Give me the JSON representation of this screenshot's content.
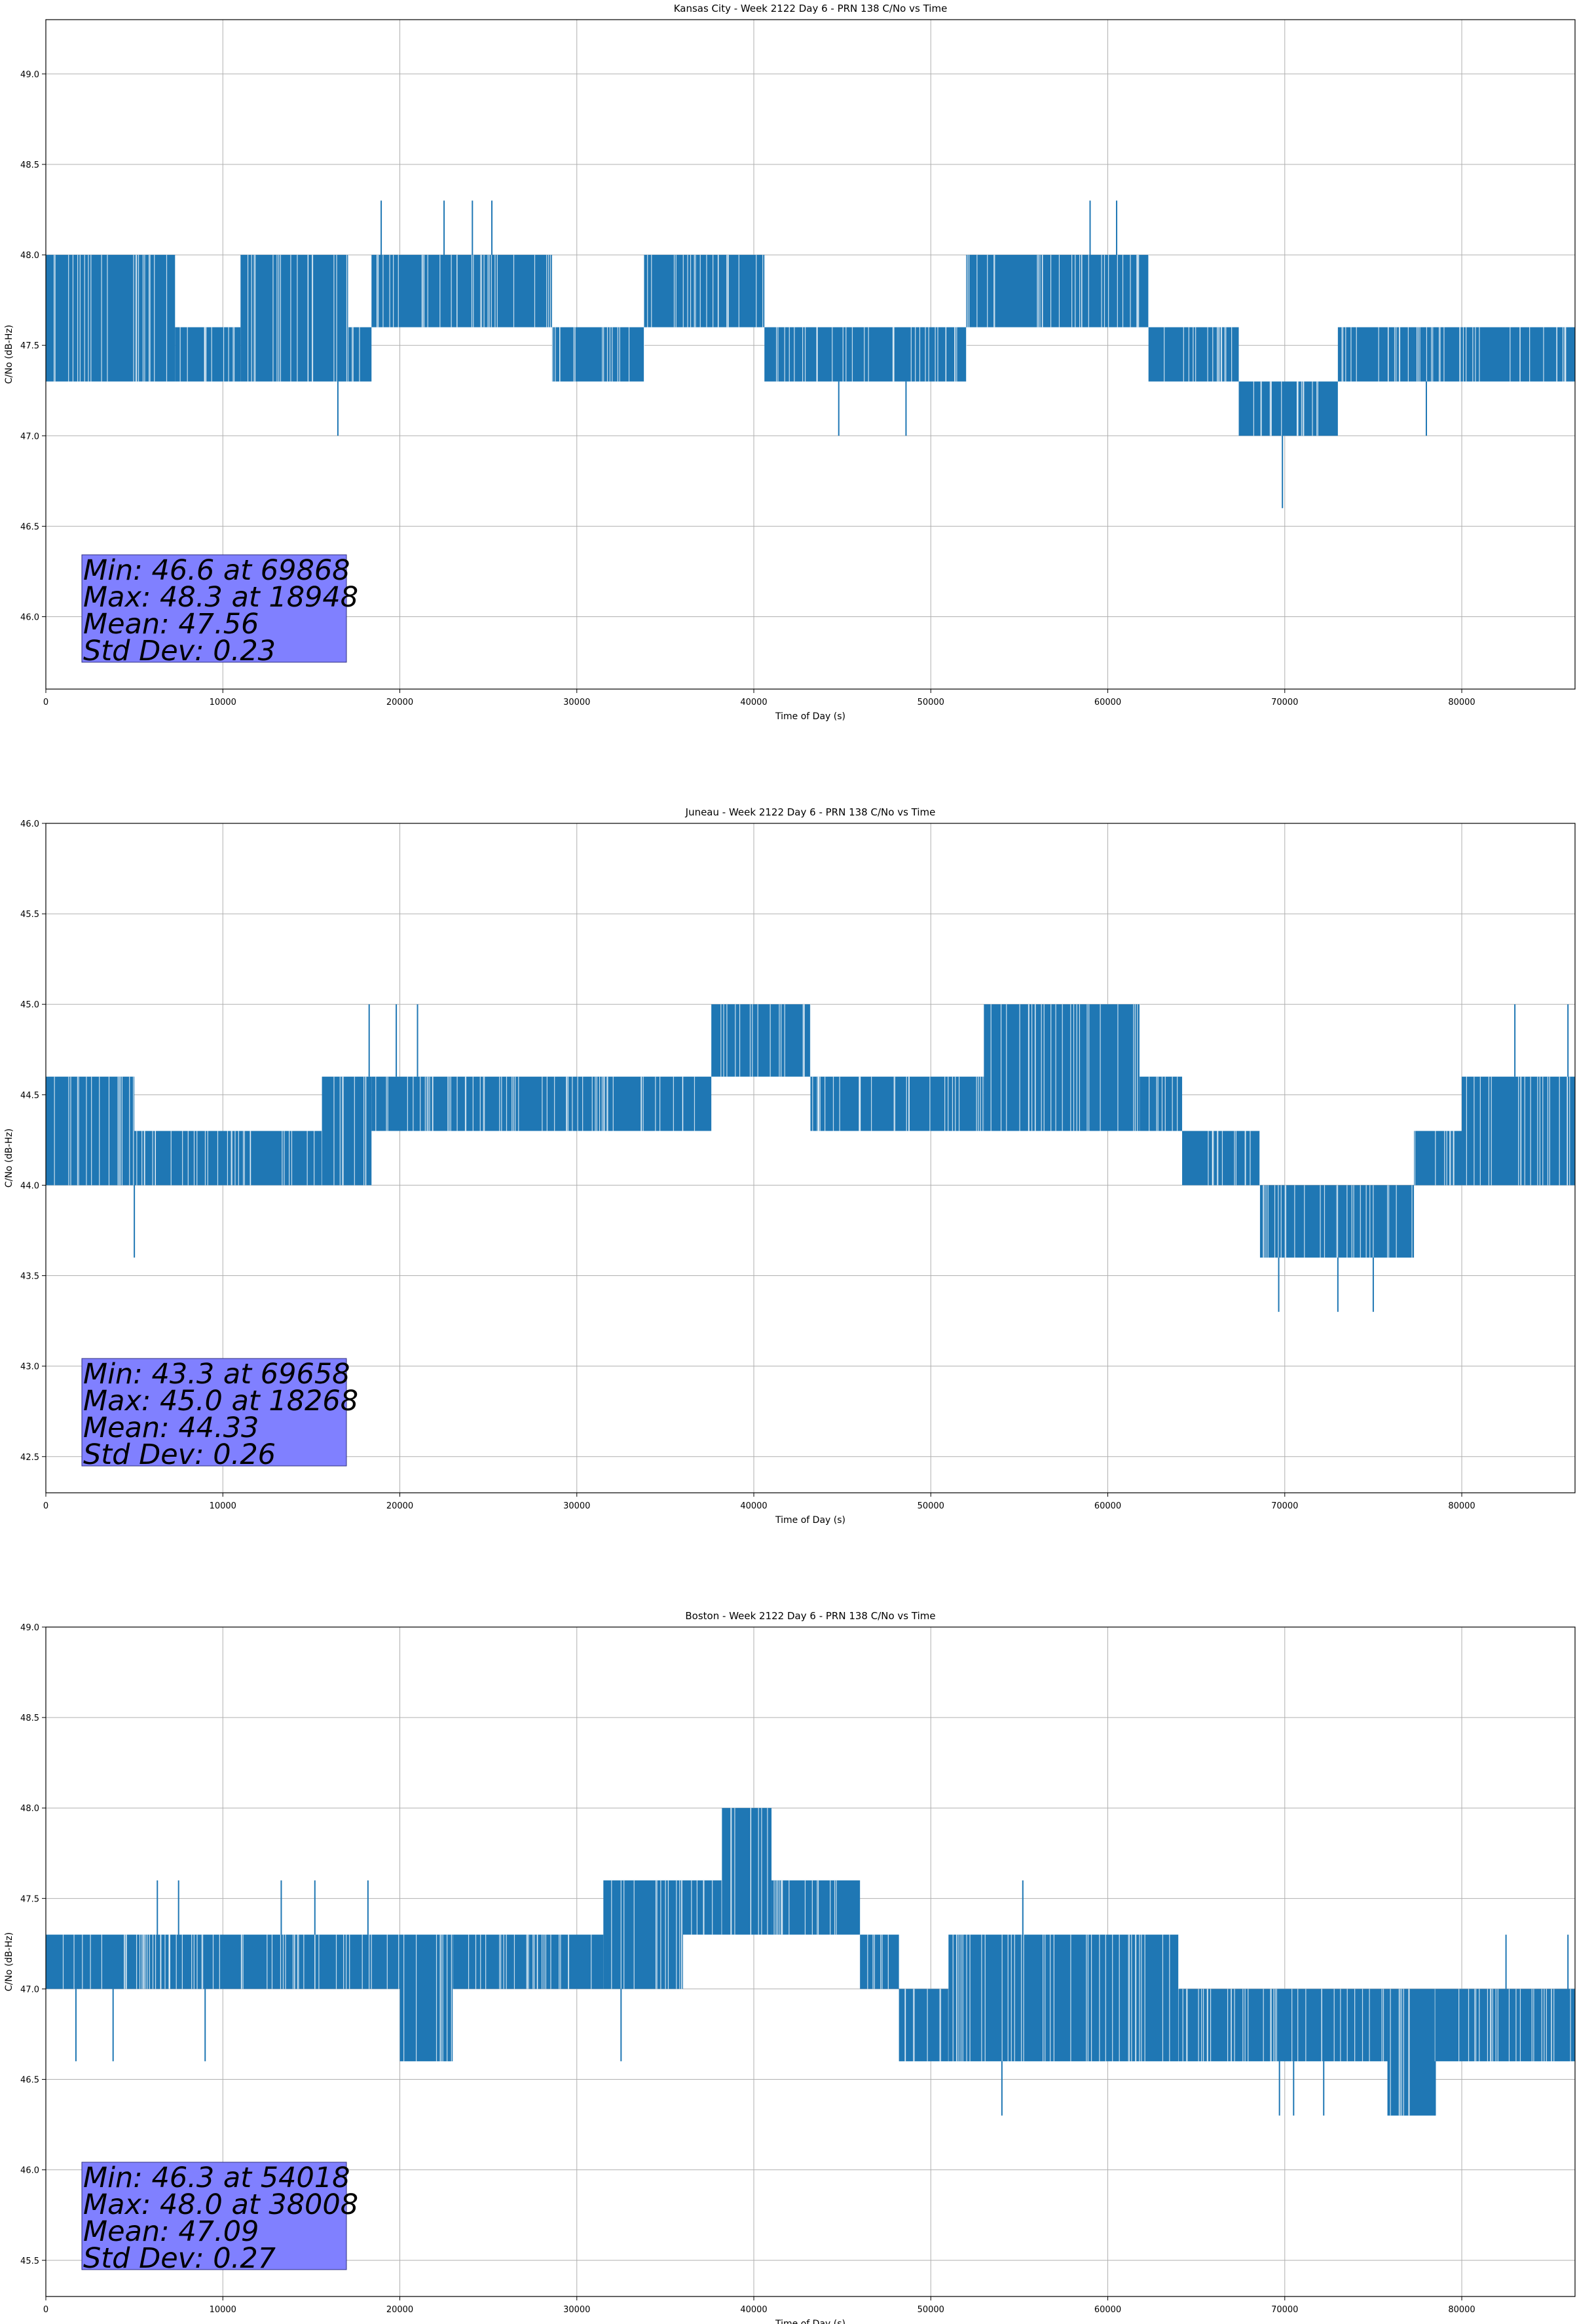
{
  "figure": {
    "background": "#ffffff",
    "series_color": "#1f77b4",
    "stats_box_color": "#8080ff"
  },
  "chart_data": [
    {
      "type": "line",
      "title": "Kansas City - Week 2122 Day 6 - PRN 138 C/No vs Time",
      "xlabel": "Time of Day (s)",
      "ylabel": "C/No (dB-Hz)",
      "xlim": [
        0,
        86400
      ],
      "ylim": [
        45.6,
        49.3
      ],
      "xticks": [
        0,
        10000,
        20000,
        30000,
        40000,
        50000,
        60000,
        70000,
        80000
      ],
      "xtick_labels": [
        "0",
        "10000",
        "20000",
        "30000",
        "40000",
        "50000",
        "60000",
        "70000",
        "80000"
      ],
      "yticks": [
        46.0,
        46.5,
        47.0,
        47.5,
        48.0,
        48.5,
        49.0
      ],
      "ytick_labels": [
        "46.0",
        "46.5",
        "47.0",
        "47.5",
        "48.0",
        "48.5",
        "49.0"
      ],
      "grid": true,
      "segments": [
        {
          "x": [
            0,
            7300
          ],
          "lo": 47.3,
          "hi": 48.0
        },
        {
          "x": [
            7300,
            11000
          ],
          "lo": 47.3,
          "hi": 47.6
        },
        {
          "x": [
            11000,
            17100
          ],
          "lo": 47.3,
          "hi": 48.0
        },
        {
          "x": [
            17100,
            18400
          ],
          "lo": 47.3,
          "hi": 47.6
        },
        {
          "x": [
            18400,
            28600
          ],
          "lo": 47.6,
          "hi": 48.0
        },
        {
          "x": [
            28600,
            33800
          ],
          "lo": 47.3,
          "hi": 47.6
        },
        {
          "x": [
            33800,
            40600
          ],
          "lo": 47.6,
          "hi": 48.0
        },
        {
          "x": [
            40600,
            52000
          ],
          "lo": 47.3,
          "hi": 47.6
        },
        {
          "x": [
            52000,
            62300
          ],
          "lo": 47.6,
          "hi": 48.0
        },
        {
          "x": [
            62300,
            67400
          ],
          "lo": 47.3,
          "hi": 47.6
        },
        {
          "x": [
            67400,
            73000
          ],
          "lo": 47.0,
          "hi": 47.3
        },
        {
          "x": [
            73000,
            76400
          ],
          "lo": 47.3,
          "hi": 47.6
        },
        {
          "x": [
            76400,
            86400
          ],
          "lo": 47.3,
          "hi": 47.6
        }
      ],
      "spikes": [
        {
          "x": 16500,
          "lo": 47.0,
          "hi": 47.3
        },
        {
          "x": 18948,
          "lo": 48.0,
          "hi": 48.3
        },
        {
          "x": 22500,
          "lo": 48.0,
          "hi": 48.3
        },
        {
          "x": 24100,
          "lo": 48.0,
          "hi": 48.3
        },
        {
          "x": 25200,
          "lo": 48.0,
          "hi": 48.3
        },
        {
          "x": 44800,
          "lo": 47.0,
          "hi": 47.3
        },
        {
          "x": 48600,
          "lo": 47.0,
          "hi": 47.3
        },
        {
          "x": 59000,
          "lo": 48.0,
          "hi": 48.3
        },
        {
          "x": 60500,
          "lo": 48.0,
          "hi": 48.3
        },
        {
          "x": 69868,
          "lo": 46.6,
          "hi": 47.0
        },
        {
          "x": 78000,
          "lo": 47.0,
          "hi": 47.3
        }
      ],
      "stats": [
        "Min: 46.6 at 69868",
        "Max: 48.3 at 18948",
        "Mean: 47.56",
        "Std Dev: 0.23"
      ]
    },
    {
      "type": "line",
      "title": "Juneau - Week 2122 Day 6 - PRN 138 C/No vs Time",
      "xlabel": "Time of Day (s)",
      "ylabel": "C/No (dB-Hz)",
      "xlim": [
        0,
        86400
      ],
      "ylim": [
        42.3,
        46.0
      ],
      "xticks": [
        0,
        10000,
        20000,
        30000,
        40000,
        50000,
        60000,
        70000,
        80000
      ],
      "xtick_labels": [
        "0",
        "10000",
        "20000",
        "30000",
        "40000",
        "50000",
        "60000",
        "70000",
        "80000"
      ],
      "yticks": [
        42.5,
        43.0,
        43.5,
        44.0,
        44.5,
        45.0,
        45.5,
        46.0
      ],
      "ytick_labels": [
        "42.5",
        "43.0",
        "43.5",
        "44.0",
        "44.5",
        "45.0",
        "45.5",
        "46.0"
      ],
      "grid": true,
      "segments": [
        {
          "x": [
            0,
            5000
          ],
          "lo": 44.0,
          "hi": 44.6
        },
        {
          "x": [
            5000,
            15600
          ],
          "lo": 44.0,
          "hi": 44.3
        },
        {
          "x": [
            15600,
            18400
          ],
          "lo": 44.0,
          "hi": 44.6
        },
        {
          "x": [
            18400,
            37600
          ],
          "lo": 44.3,
          "hi": 44.6
        },
        {
          "x": [
            37600,
            43200
          ],
          "lo": 44.6,
          "hi": 45.0
        },
        {
          "x": [
            43200,
            53000
          ],
          "lo": 44.3,
          "hi": 44.6
        },
        {
          "x": [
            53000,
            61800
          ],
          "lo": 44.3,
          "hi": 45.0
        },
        {
          "x": [
            61800,
            64200
          ],
          "lo": 44.3,
          "hi": 44.6
        },
        {
          "x": [
            64200,
            68600
          ],
          "lo": 44.0,
          "hi": 44.3
        },
        {
          "x": [
            68600,
            77300
          ],
          "lo": 43.6,
          "hi": 44.0
        },
        {
          "x": [
            77300,
            80000
          ],
          "lo": 44.0,
          "hi": 44.3
        },
        {
          "x": [
            80000,
            86400
          ],
          "lo": 44.0,
          "hi": 44.6
        }
      ],
      "spikes": [
        {
          "x": 5000,
          "lo": 43.6,
          "hi": 44.0
        },
        {
          "x": 18268,
          "lo": 44.6,
          "hi": 45.0
        },
        {
          "x": 19800,
          "lo": 44.6,
          "hi": 45.0
        },
        {
          "x": 21000,
          "lo": 44.6,
          "hi": 45.0
        },
        {
          "x": 69658,
          "lo": 43.3,
          "hi": 43.6
        },
        {
          "x": 73000,
          "lo": 43.3,
          "hi": 43.6
        },
        {
          "x": 75000,
          "lo": 43.3,
          "hi": 43.6
        },
        {
          "x": 83000,
          "lo": 44.6,
          "hi": 45.0
        },
        {
          "x": 86000,
          "lo": 44.6,
          "hi": 45.0
        }
      ],
      "stats": [
        "Min: 43.3 at 69658",
        "Max: 45.0 at 18268",
        "Mean: 44.33",
        "Std Dev: 0.26"
      ]
    },
    {
      "type": "line",
      "title": "Boston - Week 2122 Day 6 - PRN 138 C/No vs Time",
      "xlabel": "Time of Day (s)",
      "ylabel": "C/No (dB-Hz)",
      "xlim": [
        0,
        86400
      ],
      "ylim": [
        45.3,
        49.0
      ],
      "xticks": [
        0,
        10000,
        20000,
        30000,
        40000,
        50000,
        60000,
        70000,
        80000
      ],
      "xtick_labels": [
        "0",
        "10000",
        "20000",
        "30000",
        "40000",
        "50000",
        "60000",
        "70000",
        "80000"
      ],
      "yticks": [
        45.5,
        46.0,
        46.5,
        47.0,
        47.5,
        48.0,
        48.5,
        49.0
      ],
      "ytick_labels": [
        "45.5",
        "46.0",
        "46.5",
        "47.0",
        "47.5",
        "48.0",
        "48.5",
        "49.0"
      ],
      "grid": true,
      "segments": [
        {
          "x": [
            0,
            20000
          ],
          "lo": 47.0,
          "hi": 47.3
        },
        {
          "x": [
            20000,
            23000
          ],
          "lo": 46.6,
          "hi": 47.3
        },
        {
          "x": [
            23000,
            31500
          ],
          "lo": 47.0,
          "hi": 47.3
        },
        {
          "x": [
            31500,
            36000
          ],
          "lo": 47.0,
          "hi": 47.6
        },
        {
          "x": [
            36000,
            38200
          ],
          "lo": 47.3,
          "hi": 47.6
        },
        {
          "x": [
            38200,
            41000
          ],
          "lo": 47.3,
          "hi": 48.0
        },
        {
          "x": [
            41000,
            46000
          ],
          "lo": 47.3,
          "hi": 47.6
        },
        {
          "x": [
            46000,
            48200
          ],
          "lo": 47.0,
          "hi": 47.3
        },
        {
          "x": [
            48200,
            51000
          ],
          "lo": 46.6,
          "hi": 47.0
        },
        {
          "x": [
            51000,
            64000
          ],
          "lo": 46.6,
          "hi": 47.3
        },
        {
          "x": [
            64000,
            75800
          ],
          "lo": 46.6,
          "hi": 47.0
        },
        {
          "x": [
            75800,
            78500
          ],
          "lo": 46.3,
          "hi": 47.0
        },
        {
          "x": [
            78500,
            86400
          ],
          "lo": 46.6,
          "hi": 47.0
        }
      ],
      "spikes": [
        {
          "x": 1700,
          "lo": 46.6,
          "hi": 47.0
        },
        {
          "x": 3800,
          "lo": 46.6,
          "hi": 47.0
        },
        {
          "x": 6300,
          "lo": 47.3,
          "hi": 47.6
        },
        {
          "x": 7500,
          "lo": 47.3,
          "hi": 47.6
        },
        {
          "x": 9000,
          "lo": 46.6,
          "hi": 47.0
        },
        {
          "x": 13300,
          "lo": 47.3,
          "hi": 47.6
        },
        {
          "x": 15200,
          "lo": 47.3,
          "hi": 47.6
        },
        {
          "x": 18200,
          "lo": 47.3,
          "hi": 47.6
        },
        {
          "x": 32500,
          "lo": 46.6,
          "hi": 47.0
        },
        {
          "x": 54018,
          "lo": 46.3,
          "hi": 46.6
        },
        {
          "x": 55200,
          "lo": 47.3,
          "hi": 47.6
        },
        {
          "x": 69700,
          "lo": 46.3,
          "hi": 46.6
        },
        {
          "x": 70500,
          "lo": 46.3,
          "hi": 46.6
        },
        {
          "x": 72200,
          "lo": 46.3,
          "hi": 46.6
        },
        {
          "x": 78500,
          "lo": 46.3,
          "hi": 46.6
        },
        {
          "x": 82500,
          "lo": 47.0,
          "hi": 47.3
        },
        {
          "x": 86000,
          "lo": 47.0,
          "hi": 47.3
        }
      ],
      "stats": [
        "Min: 46.3 at 54018",
        "Max: 48.0 at 38008",
        "Mean: 47.09",
        "Std Dev: 0.27"
      ]
    }
  ]
}
